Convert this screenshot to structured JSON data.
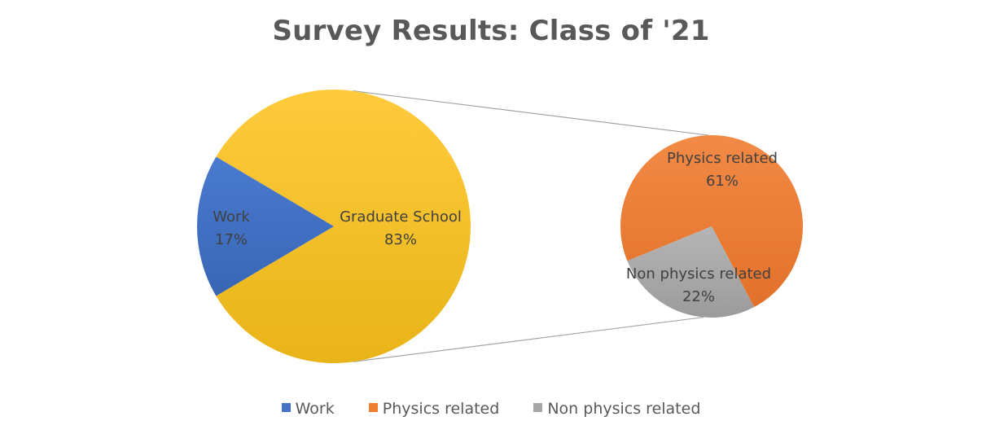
{
  "chart_data": {
    "type": "pie",
    "title": "Survey Results: Class of '21",
    "primary_pie": {
      "slices": [
        {
          "label": "Work",
          "value_text": "17%",
          "value": 17,
          "color": "#4472C4"
        },
        {
          "label": "Graduate School",
          "value_text": "83%",
          "value": 83,
          "color": "#FFC000"
        }
      ]
    },
    "secondary_pie": {
      "breakdown_of": "Graduate School",
      "slices": [
        {
          "label": "Physics related",
          "value_text": "61%",
          "value": 61,
          "color": "#ED7D31"
        },
        {
          "label": "Non physics related",
          "value_text": "22%",
          "value": 22,
          "color": "#A5A5A5"
        }
      ]
    },
    "legend": {
      "position": "bottom",
      "items": [
        {
          "label": "Work",
          "color": "#4472C4"
        },
        {
          "label": "Physics related",
          "color": "#ED7D31"
        },
        {
          "label": "Non physics related",
          "color": "#A5A5A5"
        }
      ]
    }
  }
}
